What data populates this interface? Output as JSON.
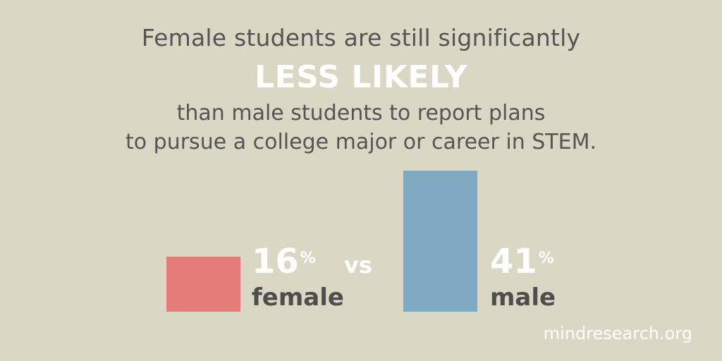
{
  "headline": {
    "line1": "Female students are still significantly",
    "emphasis": "LESS LIKELY",
    "line3": "than male students to report plans",
    "line4": "to pursue a college major or career in STEM."
  },
  "comparison_word": "vs",
  "footer": "mindresearch.org",
  "chart_data": {
    "type": "bar",
    "categories": [
      "female",
      "male"
    ],
    "values": [
      16,
      41
    ],
    "value_labels": [
      "16",
      "41"
    ],
    "unit": "%",
    "colors": [
      "#e47d78",
      "#7fa8c2"
    ],
    "title": "",
    "xlabel": "",
    "ylabel": "",
    "ylim": [
      0,
      41
    ]
  }
}
